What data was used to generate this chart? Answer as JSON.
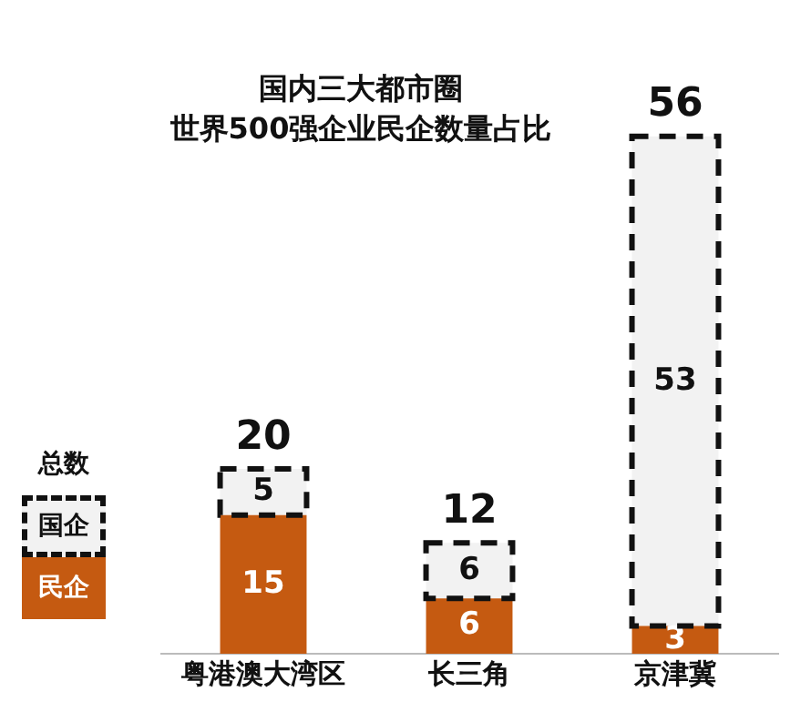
{
  "chart_data": {
    "type": "bar",
    "title": "国内三大都市圈",
    "subtitle": "世界500强企业民企数量占比",
    "categories": [
      "粤港澳大湾区",
      "长三角",
      "京津冀"
    ],
    "stacked": true,
    "series": [
      {
        "name": "民企",
        "color": "#c55a11",
        "values": [
          15,
          6,
          3
        ]
      },
      {
        "name": "国企",
        "color": "#111111",
        "values": [
          5,
          6,
          53
        ],
        "line_style": "dashed"
      }
    ],
    "legend_title": "总数",
    "totals": [
      "20",
      "12",
      "56"
    ],
    "data_labels": true,
    "legend": "left",
    "grid": false,
    "tick_labels": "x"
  }
}
